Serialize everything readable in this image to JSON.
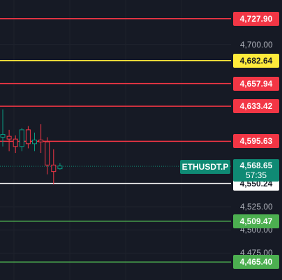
{
  "symbol": "ETHUSDT.P",
  "last_price": {
    "value": "4,568.65",
    "countdown": "57:35"
  },
  "colors": {
    "background": "#161a25",
    "red": "#f23645",
    "yellow": "#ffeb3b",
    "white": "#ffffff",
    "green": "#4caf50",
    "up_candle": "#089981",
    "down_candle": "#f23645",
    "last_price": "#0f8a74"
  },
  "levels": [
    {
      "price": 4727.9,
      "label": "4,727.90",
      "color": "red"
    },
    {
      "price": 4682.64,
      "label": "4,682.64",
      "color": "yellow"
    },
    {
      "price": 4657.94,
      "label": "4,657.94",
      "color": "red"
    },
    {
      "price": 4633.42,
      "label": "4,633.42",
      "color": "red"
    },
    {
      "price": 4595.63,
      "label": "4,595.63",
      "color": "red"
    },
    {
      "price": 4550.24,
      "label": "4,550.24",
      "color": "white"
    },
    {
      "price": 4509.47,
      "label": "4,509.47",
      "color": "green"
    },
    {
      "price": 4465.4,
      "label": "4,465.40",
      "color": "green"
    }
  ],
  "chart_data": {
    "type": "candlestick",
    "y_ticks": [
      {
        "value": 4700,
        "label": "4,700.00"
      },
      {
        "value": 4525,
        "label": "4,525.00"
      },
      {
        "value": 4500,
        "label": "4,500.00"
      },
      {
        "value": 4475,
        "label": "4,475.00"
      }
    ],
    "ylim": [
      4446,
      4748
    ],
    "grid": true,
    "candles": [
      {
        "open": 4600,
        "high": 4630,
        "low": 4590,
        "close": 4603
      },
      {
        "open": 4601,
        "high": 4608,
        "low": 4585,
        "close": 4598
      },
      {
        "open": 4598,
        "high": 4602,
        "low": 4583,
        "close": 4590
      },
      {
        "open": 4590,
        "high": 4610,
        "low": 4585,
        "close": 4608
      },
      {
        "open": 4608,
        "high": 4612,
        "low": 4588,
        "close": 4593
      },
      {
        "open": 4593,
        "high": 4605,
        "low": 4585,
        "close": 4597
      },
      {
        "open": 4597,
        "high": 4614,
        "low": 4583,
        "close": 4595
      },
      {
        "open": 4595,
        "high": 4600,
        "low": 4560,
        "close": 4570
      },
      {
        "open": 4570,
        "high": 4587,
        "low": 4549,
        "close": 4563
      },
      {
        "open": 4566,
        "high": 4572,
        "low": 4565,
        "close": 4569
      }
    ]
  }
}
